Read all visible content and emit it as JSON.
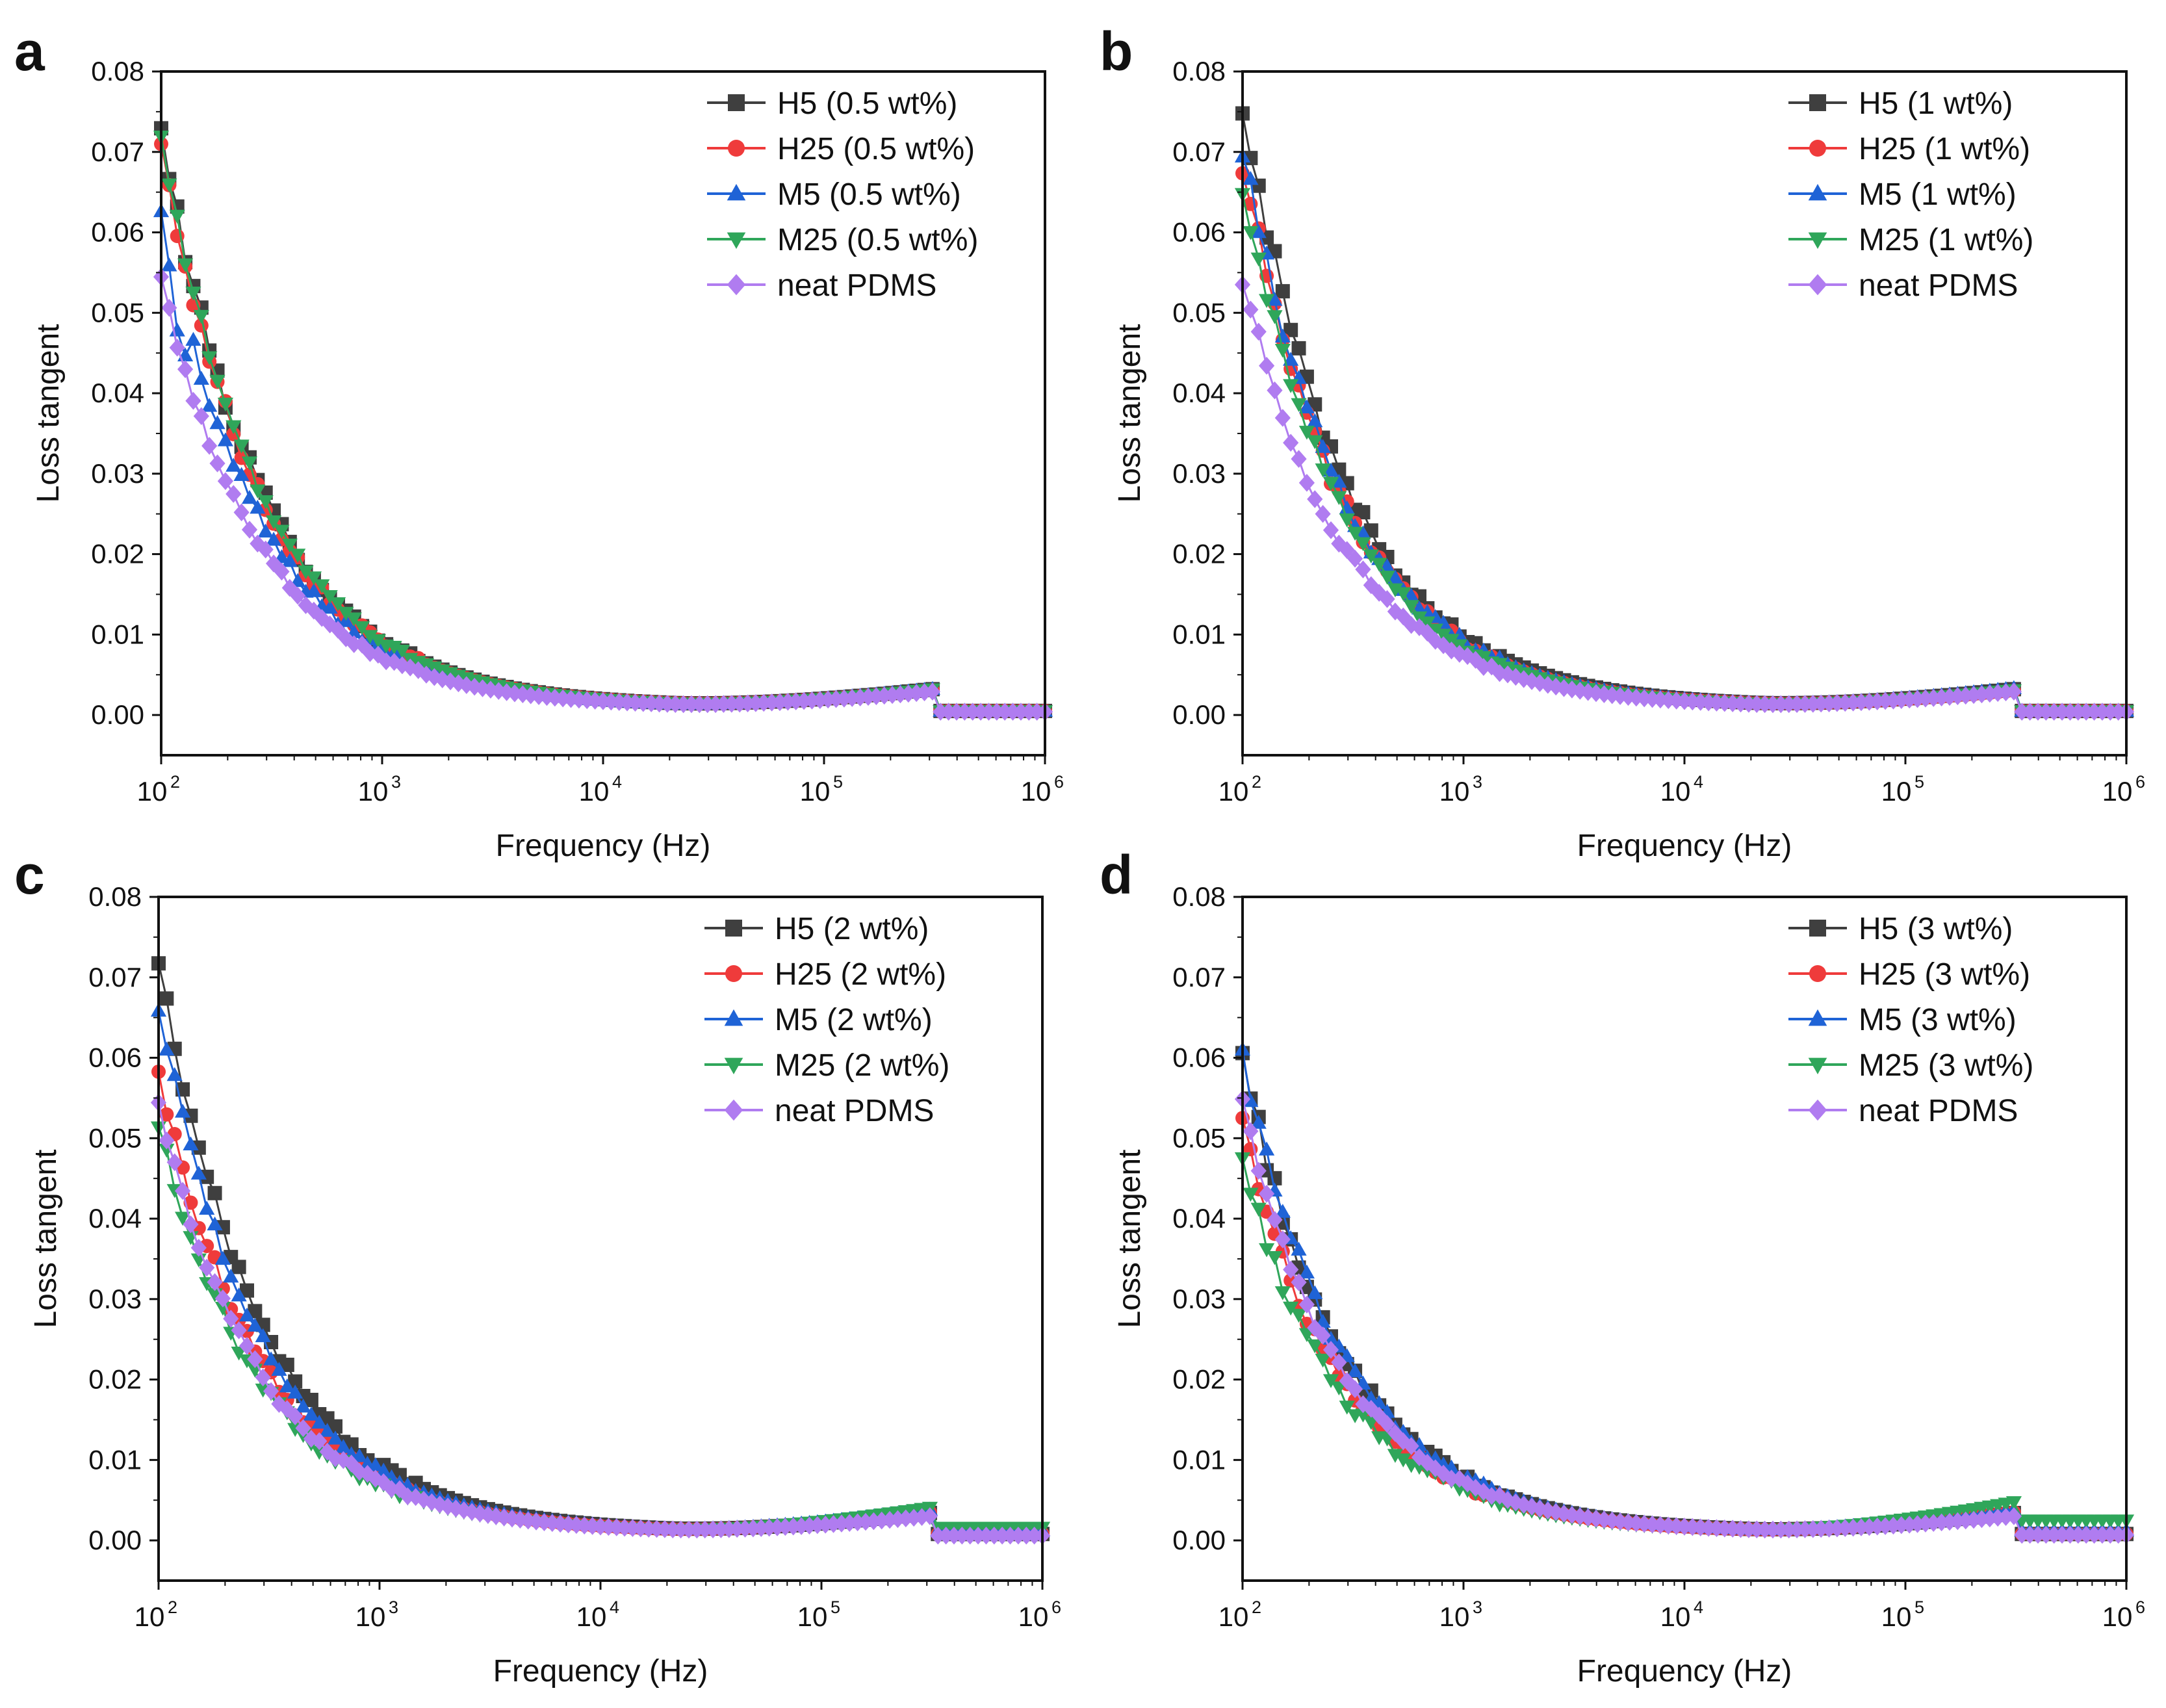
{
  "figure": {
    "colors": {
      "H5": "#3f3f3f",
      "H25": "#ef3b3b",
      "M5": "#1f63d6",
      "M25": "#2fa65a",
      "neat": "#b07cf0"
    },
    "marker_shapes": {
      "H5": "square",
      "H25": "circle",
      "M5": "triangle-up",
      "M25": "triangle-down",
      "neat": "diamond"
    }
  },
  "chart_data": [
    {
      "panel": "a",
      "type": "scatter",
      "xscale": "log",
      "xlim": [
        100,
        1000000
      ],
      "ylim": [
        -0.005,
        0.08
      ],
      "xlabel": "Frequency (Hz)",
      "ylabel": "Loss tangent",
      "xticks": [
        {
          "base": "10",
          "exp": "2"
        },
        {
          "base": "10",
          "exp": "3"
        },
        {
          "base": "10",
          "exp": "4"
        },
        {
          "base": "10",
          "exp": "5"
        },
        {
          "base": "10",
          "exp": "6"
        }
      ],
      "yticks": [
        "0.00",
        "0.01",
        "0.02",
        "0.03",
        "0.04",
        "0.05",
        "0.06",
        "0.07",
        "0.08"
      ],
      "legend_position": "top-right",
      "series": [
        {
          "key": "H5",
          "name": "H5 (0.5 wt%)",
          "a0": 0.0725,
          "jump": 0,
          "tail_hi": 0.0034,
          "tail_lo": 0.0005,
          "noise": 0.0016
        },
        {
          "key": "H25",
          "name": "H25 (0.5 wt%)",
          "a0": 0.0705,
          "jump": 0,
          "tail_hi": 0.0033,
          "tail_lo": 0.0005,
          "noise": 0.0016
        },
        {
          "key": "M5",
          "name": "M5 (0.5 wt%)",
          "a0": 0.062,
          "jump": 0.011,
          "tail_hi": 0.0034,
          "tail_lo": 0.0005,
          "noise": 0.0018
        },
        {
          "key": "M25",
          "name": "M25 (0.5 wt%)",
          "a0": 0.0715,
          "jump": 0,
          "tail_hi": 0.0034,
          "tail_lo": 0.0005,
          "noise": 0.0012
        },
        {
          "key": "neat",
          "name": "neat PDMS",
          "a0": 0.054,
          "jump": 0,
          "tail_hi": 0.0031,
          "tail_lo": 0.0004,
          "noise": 0.0012
        }
      ]
    },
    {
      "panel": "b",
      "type": "scatter",
      "xscale": "log",
      "xlim": [
        100,
        1000000
      ],
      "ylim": [
        -0.005,
        0.08
      ],
      "xlabel": "Frequency (Hz)",
      "ylabel": "Loss tangent",
      "xticks": [
        {
          "base": "10",
          "exp": "2"
        },
        {
          "base": "10",
          "exp": "3"
        },
        {
          "base": "10",
          "exp": "4"
        },
        {
          "base": "10",
          "exp": "5"
        },
        {
          "base": "10",
          "exp": "6"
        }
      ],
      "yticks": [
        "0.00",
        "0.01",
        "0.02",
        "0.03",
        "0.04",
        "0.05",
        "0.06",
        "0.07",
        "0.08"
      ],
      "legend_position": "top-right",
      "series": [
        {
          "key": "H5",
          "name": "H5 (1 wt%)",
          "a0": 0.0765,
          "jump": 0,
          "tail_hi": 0.0034,
          "tail_lo": 0.0005,
          "noise": 0.0018
        },
        {
          "key": "H25",
          "name": "H25 (1 wt%)",
          "a0": 0.069,
          "jump": 0,
          "tail_hi": 0.0032,
          "tail_lo": 0.0005,
          "noise": 0.0018
        },
        {
          "key": "M5",
          "name": "M5 (1 wt%)",
          "a0": 0.071,
          "jump": 0,
          "tail_hi": 0.0035,
          "tail_lo": 0.0005,
          "noise": 0.0018
        },
        {
          "key": "M25",
          "name": "M25 (1 wt%)",
          "a0": 0.066,
          "jump": 0,
          "tail_hi": 0.0033,
          "tail_lo": 0.0005,
          "noise": 0.0014
        },
        {
          "key": "neat",
          "name": "neat PDMS",
          "a0": 0.0545,
          "jump": 0,
          "tail_hi": 0.0031,
          "tail_lo": 0.0004,
          "noise": 0.0012
        }
      ]
    },
    {
      "panel": "c",
      "type": "scatter",
      "xscale": "log",
      "xlim": [
        100,
        1000000
      ],
      "ylim": [
        -0.005,
        0.08
      ],
      "xlabel": "Frequency (Hz)",
      "ylabel": "Loss tangent",
      "xticks": [
        {
          "base": "10",
          "exp": "2"
        },
        {
          "base": "10",
          "exp": "3"
        },
        {
          "base": "10",
          "exp": "4"
        },
        {
          "base": "10",
          "exp": "5"
        },
        {
          "base": "10",
          "exp": "6"
        }
      ],
      "yticks": [
        "0.00",
        "0.01",
        "0.02",
        "0.03",
        "0.04",
        "0.05",
        "0.06",
        "0.07",
        "0.08"
      ],
      "legend_position": "top-right",
      "series": [
        {
          "key": "H5",
          "name": "H5 (2 wt%)",
          "a0": 0.072,
          "jump": 0,
          "tail_hi": 0.0036,
          "tail_lo": 0.0008,
          "noise": 0.0015
        },
        {
          "key": "H25",
          "name": "H25 (2 wt%)",
          "a0": 0.0585,
          "jump": 0,
          "tail_hi": 0.0037,
          "tail_lo": 0.0008,
          "noise": 0.0016
        },
        {
          "key": "M5",
          "name": "M5 (2 wt%)",
          "a0": 0.066,
          "jump": 0,
          "tail_hi": 0.004,
          "tail_lo": 0.0012,
          "noise": 0.0015
        },
        {
          "key": "M25",
          "name": "M25 (2 wt%)",
          "a0": 0.0515,
          "jump": 0,
          "tail_hi": 0.0043,
          "tail_lo": 0.0016,
          "noise": 0.0015
        },
        {
          "key": "neat",
          "name": "neat PDMS",
          "a0": 0.0545,
          "jump": 0,
          "tail_hi": 0.0032,
          "tail_lo": 0.0006,
          "noise": 0.0012
        }
      ]
    },
    {
      "panel": "d",
      "type": "scatter",
      "xscale": "log",
      "xlim": [
        100,
        1000000
      ],
      "ylim": [
        -0.005,
        0.08
      ],
      "xlabel": "Frequency (Hz)",
      "ylabel": "Loss tangent",
      "xticks": [
        {
          "base": "10",
          "exp": "2"
        },
        {
          "base": "10",
          "exp": "3"
        },
        {
          "base": "10",
          "exp": "4"
        },
        {
          "base": "10",
          "exp": "5"
        },
        {
          "base": "10",
          "exp": "6"
        }
      ],
      "yticks": [
        "0.00",
        "0.01",
        "0.02",
        "0.03",
        "0.04",
        "0.05",
        "0.06",
        "0.07",
        "0.08"
      ],
      "legend_position": "top-right",
      "series": [
        {
          "key": "H5",
          "name": "H5 (3 wt%)",
          "a0": 0.0595,
          "jump": 0,
          "tail_hi": 0.0036,
          "tail_lo": 0.0008,
          "noise": 0.0018
        },
        {
          "key": "H25",
          "name": "H25 (3 wt%)",
          "a0": 0.0515,
          "jump": 0,
          "tail_hi": 0.0037,
          "tail_lo": 0.0008,
          "noise": 0.0016
        },
        {
          "key": "M5",
          "name": "M5 (3 wt%)",
          "a0": 0.06,
          "jump": 0,
          "tail_hi": 0.004,
          "tail_lo": 0.0012,
          "noise": 0.0015
        },
        {
          "key": "M25",
          "name": "M25 (3 wt%)",
          "a0": 0.0465,
          "jump": 0,
          "tail_hi": 0.005,
          "tail_lo": 0.0025,
          "noise": 0.0015
        },
        {
          "key": "neat",
          "name": "neat PDMS",
          "a0": 0.054,
          "jump": 0,
          "tail_hi": 0.0032,
          "tail_lo": 0.0007,
          "noise": 0.0012
        }
      ]
    }
  ]
}
